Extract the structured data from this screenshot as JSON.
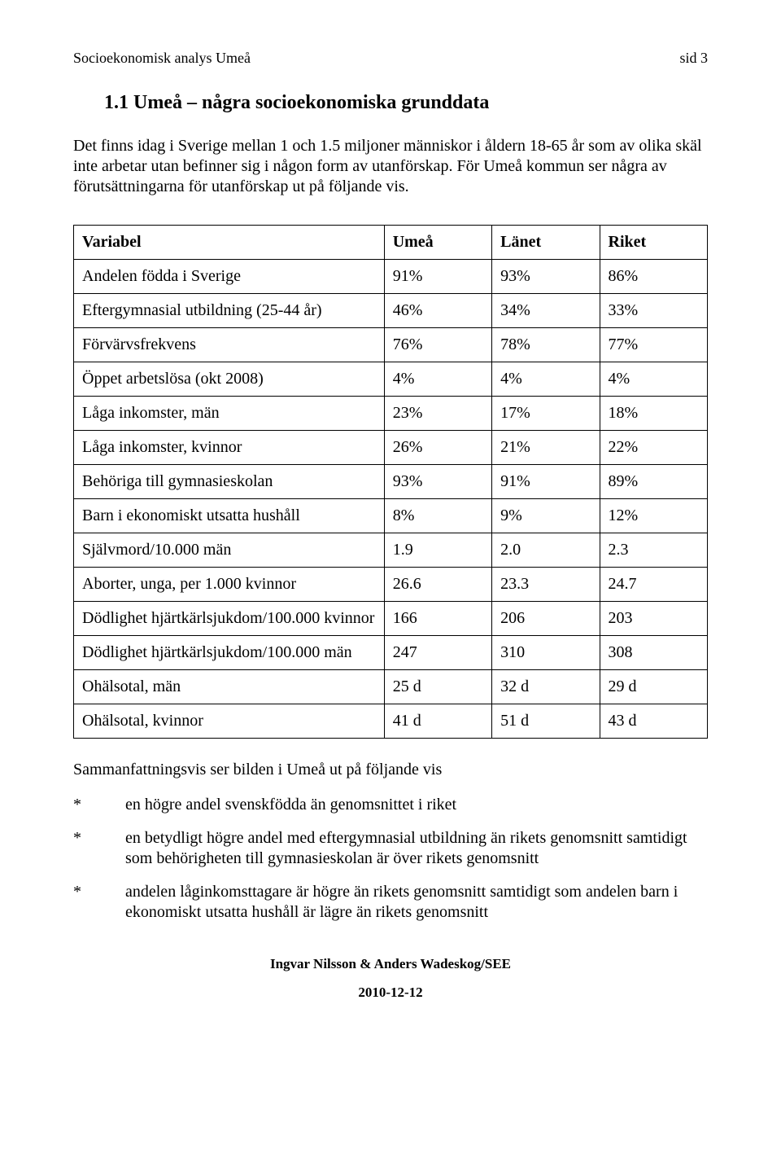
{
  "header": {
    "left": "Socioekonomisk analys Umeå",
    "right": "sid 3"
  },
  "section_title": "1.1  Umeå – några socioekonomiska grunddata",
  "intro_paragraph": "Det finns idag i Sverige mellan 1 och 1.5 miljoner människor i åldern 18-65 år som av olika skäl inte arbetar utan befinner sig i någon form av utanförskap. För Umeå kommun ser några av förutsättningarna för utanförskap ut på följande vis.",
  "table": {
    "columns": [
      "Variabel",
      "Umeå",
      "Länet",
      "Riket"
    ],
    "col_widths_pct": [
      49,
      17,
      17,
      17
    ],
    "rows": [
      [
        "Andelen födda i Sverige",
        "91%",
        "93%",
        "86%"
      ],
      [
        "Eftergymnasial utbildning (25-44 år)",
        "46%",
        "34%",
        "33%"
      ],
      [
        "Förvärvsfrekvens",
        "76%",
        "78%",
        "77%"
      ],
      [
        "Öppet arbetslösa (okt 2008)",
        "4%",
        "4%",
        "4%"
      ],
      [
        "Låga inkomster, män",
        "23%",
        "17%",
        "18%"
      ],
      [
        "Låga inkomster, kvinnor",
        "26%",
        "21%",
        "22%"
      ],
      [
        "Behöriga till gymnasieskolan",
        "93%",
        "91%",
        "89%"
      ],
      [
        "Barn i ekonomiskt utsatta hushåll",
        "8%",
        "9%",
        "12%"
      ],
      [
        "Självmord/10.000 män",
        "1.9",
        "2.0",
        "2.3"
      ],
      [
        "Aborter, unga, per 1.000 kvinnor",
        "26.6",
        "23.3",
        "24.7"
      ],
      [
        "Dödlighet hjärtkärlsjukdom/100.000 kvinnor",
        "166",
        "206",
        "203"
      ],
      [
        "Dödlighet hjärtkärlsjukdom/100.000 män",
        "247",
        "310",
        "308"
      ],
      [
        "Ohälsotal, män",
        "25 d",
        "32 d",
        "29 d"
      ],
      [
        "Ohälsotal, kvinnor",
        "41 d",
        "51 d",
        "43 d"
      ]
    ],
    "border_color": "#000000",
    "background_color": "#ffffff",
    "font_size_pt": 15
  },
  "summary_line": "Sammanfattningsvis ser bilden i Umeå ut på följande vis",
  "bullets": [
    "en högre andel svenskfödda än genomsnittet i riket",
    "en betydligt högre andel med eftergymnasial utbildning än rikets genomsnitt samtidigt som behörigheten till gymnasieskolan är över rikets genomsnitt",
    "andelen låginkomsttagare är högre än rikets genomsnitt samtidigt som andelen barn i ekonomiskt utsatta hushåll är lägre än rikets genomsnitt"
  ],
  "bullet_marker": "*",
  "footer": {
    "authors": "Ingvar Nilsson  & Anders Wadeskog/SEE",
    "date": "2010-12-12"
  },
  "colors": {
    "page_background": "#ffffff",
    "text": "#000000",
    "table_border": "#000000"
  },
  "typography": {
    "body_font_family": "Times New Roman",
    "body_font_size_pt": 15,
    "title_font_size_pt": 18,
    "title_font_weight": "bold",
    "header_font_size_pt": 13
  }
}
